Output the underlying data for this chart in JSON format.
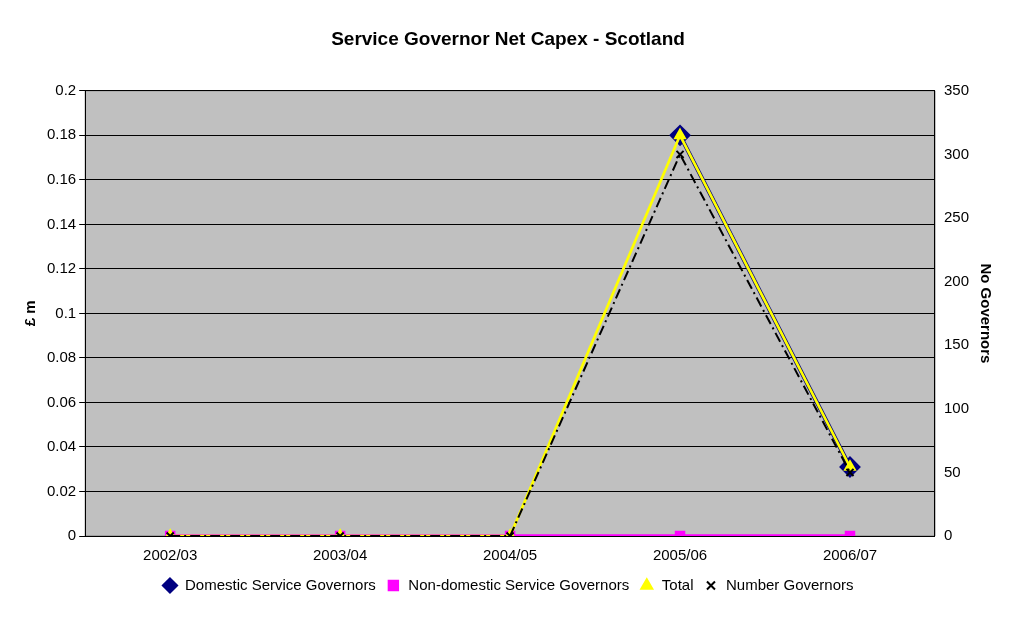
{
  "chart_data": {
    "type": "line",
    "title": "Service Governor Net Capex - Scotland",
    "ylabel": "£ m",
    "y2label": "No Governors",
    "categories": [
      "2002/03",
      "2003/04",
      "2004/05",
      "2005/06",
      "2006/07"
    ],
    "series": [
      {
        "name": "Domestic Service Governors",
        "color": "#000080",
        "marker": "diamond",
        "line_style": "solid",
        "values": [
          null,
          null,
          null,
          0.18,
          0.031
        ]
      },
      {
        "name": "Non-domestic Service Governors",
        "color": "#ff00ff",
        "marker": "square",
        "line_style": "solid",
        "values": [
          0,
          0,
          0,
          0,
          0
        ]
      },
      {
        "name": "Total",
        "color": "#ffff00",
        "marker": "triangle",
        "line_style": "solid",
        "values": [
          0,
          0,
          0,
          0.18,
          0.031
        ]
      },
      {
        "name": "Number Governors",
        "color": "#000000",
        "marker": "cross",
        "line_style": "dashdot",
        "axis": "y2",
        "values": [
          0,
          0,
          0,
          300,
          50
        ]
      }
    ],
    "ylim": [
      0,
      0.2
    ],
    "yticks": [
      0,
      0.02,
      0.04,
      0.06,
      0.08,
      0.1,
      0.12,
      0.14,
      0.16,
      0.18,
      0.2
    ],
    "y2lim": [
      0,
      350
    ],
    "y2ticks": [
      0,
      50,
      100,
      150,
      200,
      250,
      300,
      350
    ],
    "grid": "y",
    "legend": "bottom"
  }
}
